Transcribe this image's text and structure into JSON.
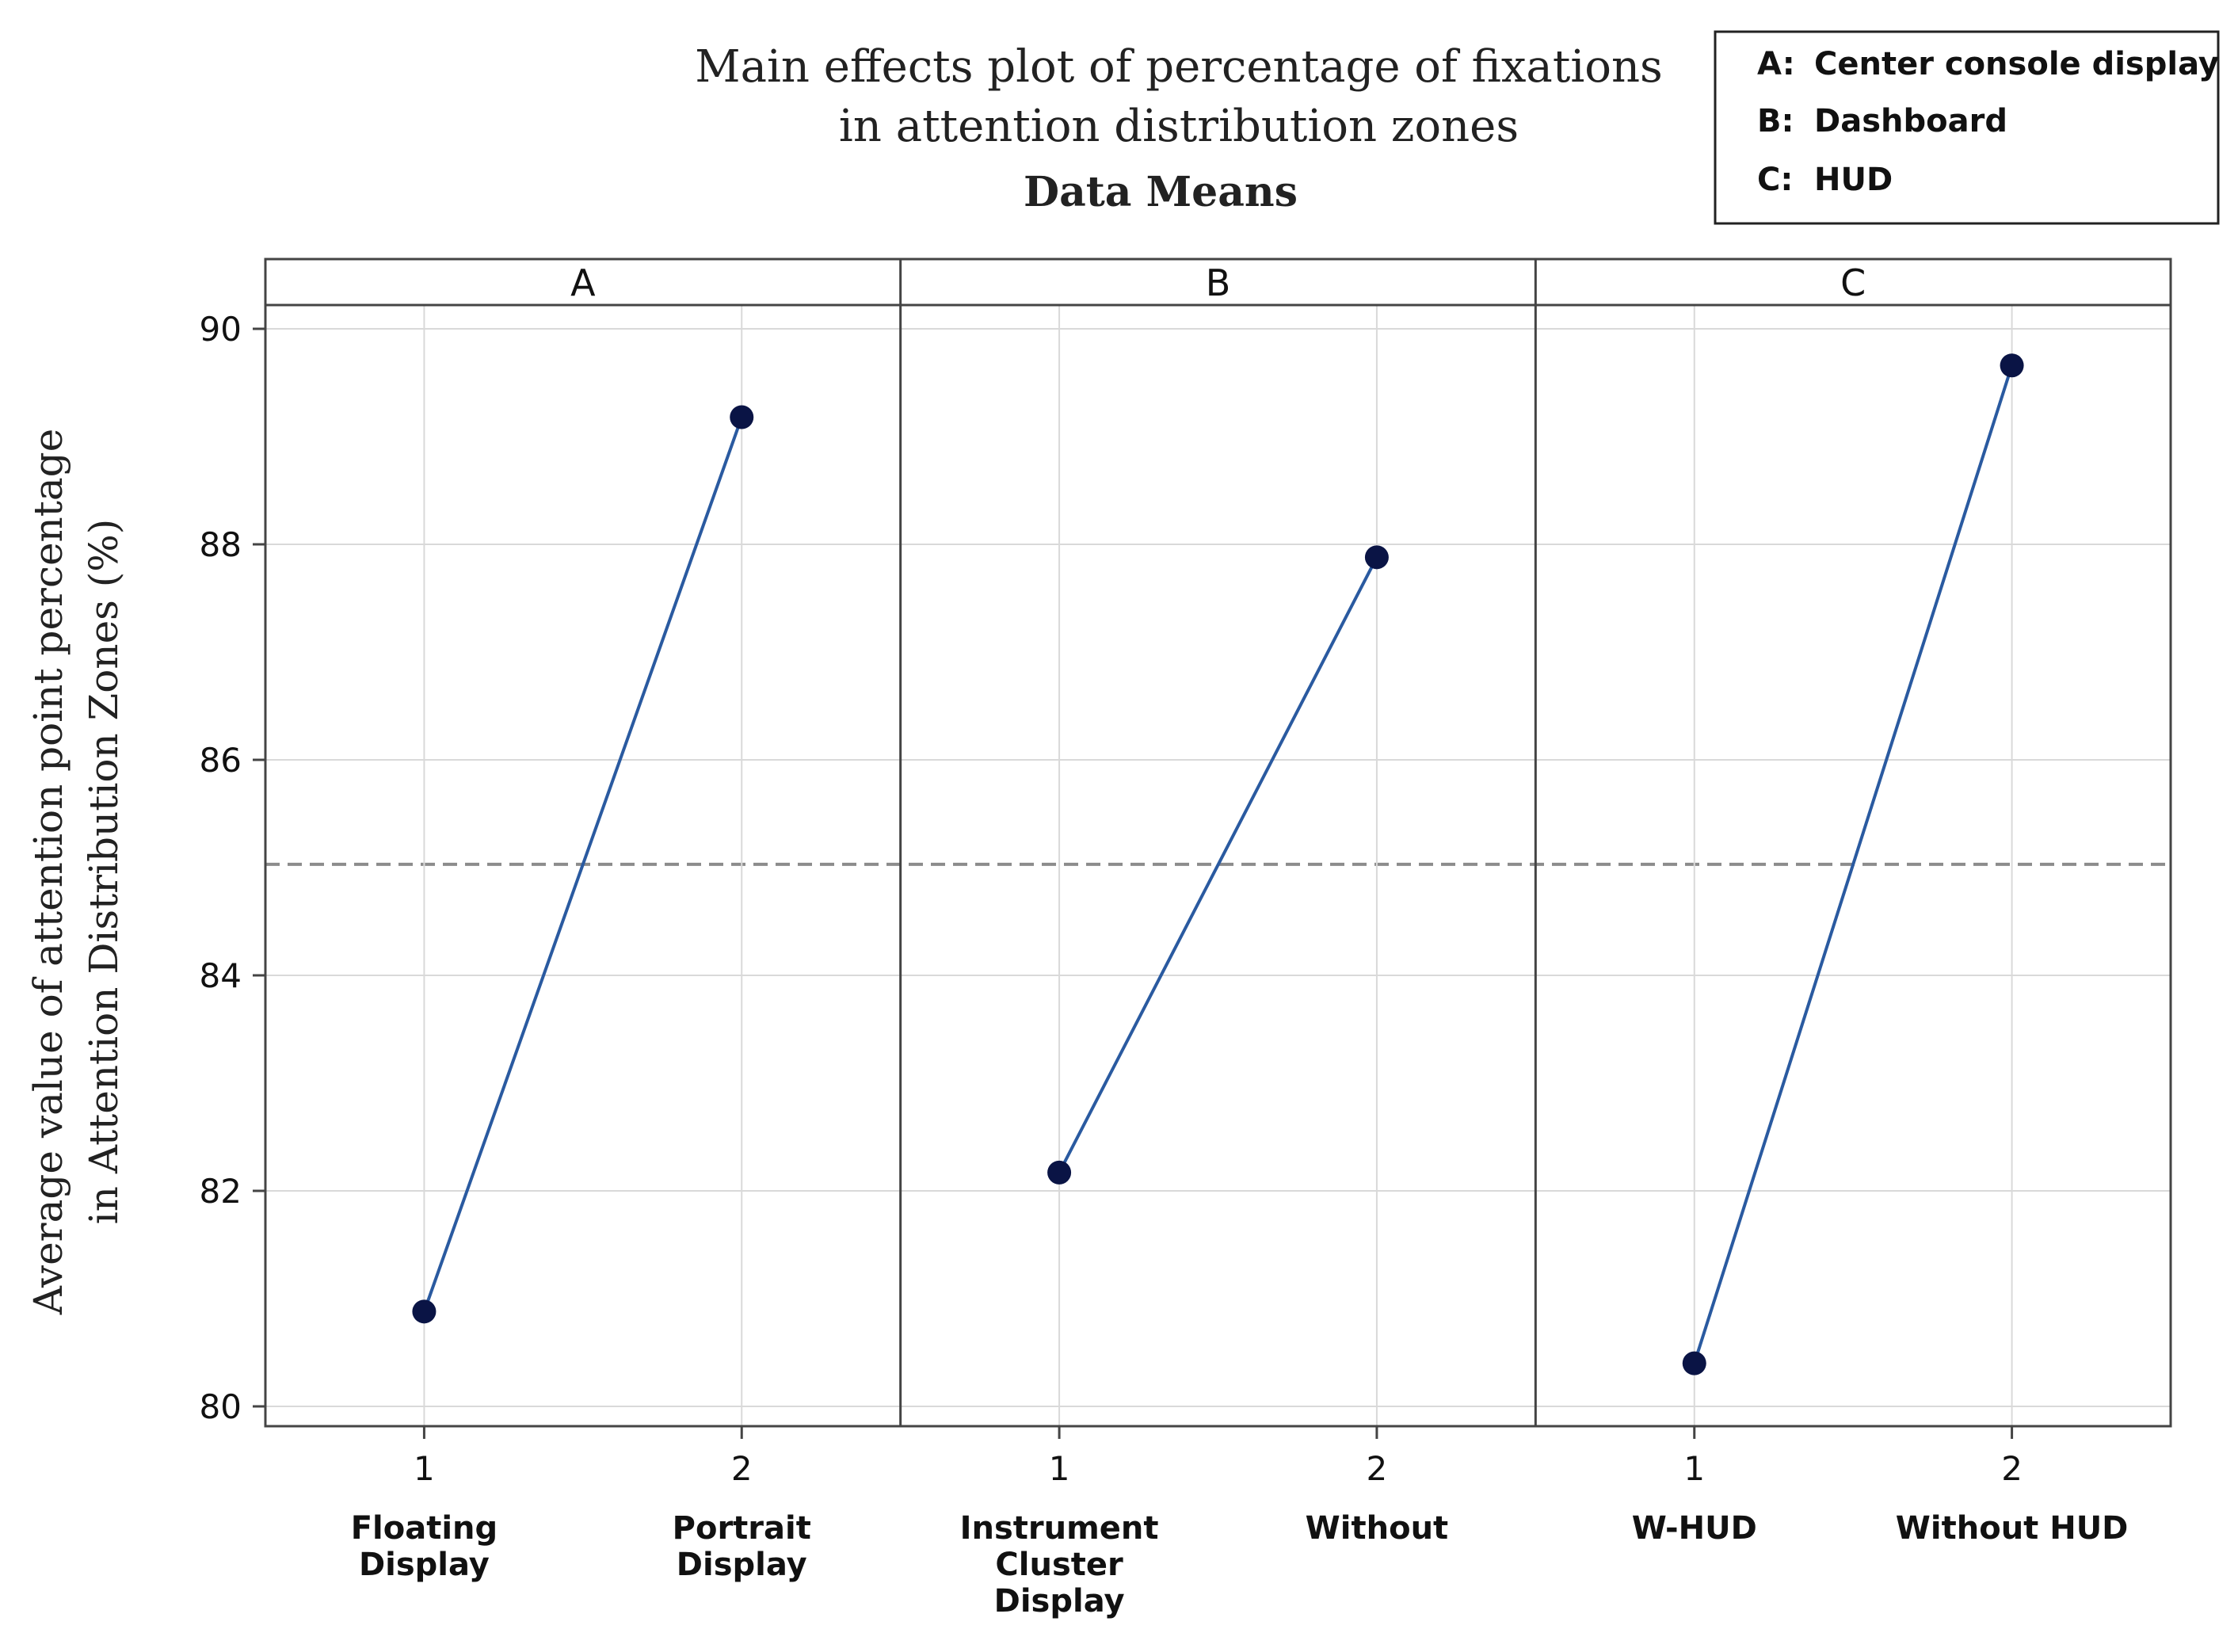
{
  "chart_data": {
    "type": "line",
    "title_line1": "Main effects plot of percentage of fixations",
    "title_line2": "in attention distribution zones",
    "subtitle": "Data Means",
    "ylabel_line1": "Average value of attention point percentage",
    "ylabel_line2": "in Attention Distribution Zones (%)",
    "ylim": [
      80,
      90
    ],
    "y_ticks": [
      80,
      82,
      84,
      86,
      88,
      90
    ],
    "reference_line": 85.03,
    "legend": {
      "position": "top-right",
      "entries": [
        {
          "key": "A:",
          "text": "Center console display"
        },
        {
          "key": "B:",
          "text": "Dashboard"
        },
        {
          "key": "C:",
          "text": "HUD"
        }
      ]
    },
    "panels": [
      {
        "name": "A",
        "levels": [
          "1",
          "2"
        ],
        "level_labels": [
          [
            "Floating",
            "Display"
          ],
          [
            "Portrait",
            "Display"
          ]
        ],
        "values": [
          80.88,
          89.18
        ]
      },
      {
        "name": "B",
        "levels": [
          "1",
          "2"
        ],
        "level_labels": [
          [
            "Instrument",
            "Cluster",
            "Display"
          ],
          [
            "Without"
          ]
        ],
        "values": [
          82.17,
          87.88
        ]
      },
      {
        "name": "C",
        "levels": [
          "1",
          "2"
        ],
        "level_labels": [
          [
            "W-HUD"
          ],
          [
            "Without HUD"
          ]
        ],
        "values": [
          80.4,
          89.66
        ]
      }
    ],
    "colors": {
      "line": "#2a5aa0",
      "marker": "#0a1445",
      "reference": "#8c8c8c",
      "grid": "#d9d9d9",
      "frame": "#444444"
    }
  }
}
